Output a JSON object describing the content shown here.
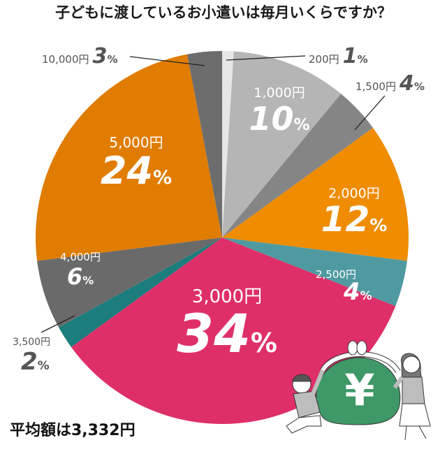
{
  "title": "子どもに渡しているお小遣いは毎月いくらですか？",
  "average": "平均額は3,332円",
  "chart_data": {
    "type": "pie",
    "title": "子どもに渡しているお小遣いは毎月いくらですか？",
    "start_angle": "12 o'clock, clockwise",
    "categories": [
      "200円",
      "1,000円",
      "1,500円",
      "2,000円",
      "2,500円",
      "3,000円",
      "3,500円",
      "4,000円",
      "5,000円",
      "10,000円"
    ],
    "values": [
      1,
      10,
      4,
      12,
      4,
      34,
      2,
      6,
      24,
      3
    ],
    "unit": "%",
    "colors": [
      "#e6e6e6",
      "#b5b5b5",
      "#858585",
      "#ef8c00",
      "#4f9aa1",
      "#df2f68",
      "#1d7c7c",
      "#6a6a6a",
      "#e07c00",
      "#6d6d6d"
    ],
    "annotation": "平均額は3,332円"
  },
  "labels": [
    {
      "yen": "200円",
      "pct": "1",
      "ps": "%"
    },
    {
      "yen": "1,000円",
      "pct": "10",
      "ps": "%"
    },
    {
      "yen": "1,500円",
      "pct": "4",
      "ps": "%"
    },
    {
      "yen": "2,000円",
      "pct": "12",
      "ps": "%"
    },
    {
      "yen": "2,500円",
      "pct": "4",
      "ps": "%"
    },
    {
      "yen": "3,000円",
      "pct": "34",
      "ps": "%"
    },
    {
      "yen": "3,500円",
      "pct": "2",
      "ps": "%"
    },
    {
      "yen": "4,000円",
      "pct": "6",
      "ps": "%"
    },
    {
      "yen": "5,000円",
      "pct": "24",
      "ps": "%"
    },
    {
      "yen": "10,000円",
      "pct": "3",
      "ps": "%"
    }
  ],
  "illustration": {
    "symbol": "¥"
  }
}
